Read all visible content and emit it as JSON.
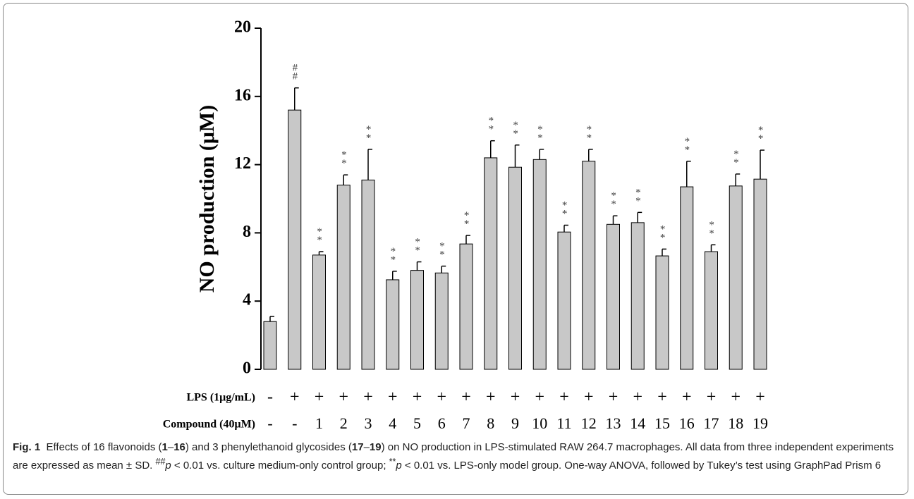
{
  "chart_data": {
    "type": "bar",
    "ylabel": "NO production (μM)",
    "ylim": [
      0,
      20
    ],
    "yticks": [
      0,
      4,
      8,
      12,
      16,
      20
    ],
    "color": "#c8c8c8",
    "row_labels": [
      "LPS (1μg/mL)",
      "Compound (40μM)"
    ],
    "lps": [
      "-",
      "+",
      "+",
      "+",
      "+",
      "+",
      "+",
      "+",
      "+",
      "+",
      "+",
      "+",
      "+",
      "+",
      "+",
      "+",
      "+",
      "+",
      "+",
      "+",
      "+"
    ],
    "categories": [
      "-",
      "-",
      "1",
      "2",
      "3",
      "4",
      "5",
      "6",
      "7",
      "8",
      "9",
      "10",
      "11",
      "12",
      "13",
      "14",
      "15",
      "16",
      "17",
      "18",
      "19"
    ],
    "values": [
      2.8,
      15.2,
      6.7,
      10.8,
      11.1,
      5.25,
      5.8,
      5.65,
      7.35,
      12.4,
      11.85,
      12.3,
      8.05,
      12.2,
      8.5,
      8.6,
      6.65,
      10.7,
      6.9,
      10.75,
      11.15
    ],
    "errors": [
      0.3,
      1.3,
      0.2,
      0.6,
      1.8,
      0.5,
      0.5,
      0.4,
      0.5,
      1.0,
      1.3,
      0.6,
      0.4,
      0.7,
      0.5,
      0.6,
      0.4,
      1.5,
      0.4,
      0.7,
      1.7
    ],
    "significance": [
      null,
      "##",
      "**",
      "**",
      "**",
      "**",
      "**",
      "**",
      "**",
      "**",
      "**",
      "**",
      "**",
      "**",
      "**",
      "**",
      "**",
      "**",
      "**",
      "**",
      "**"
    ]
  },
  "caption": {
    "label": "Fig. 1",
    "parts": [
      "Effects of 16 flavonoids (",
      "1",
      "–",
      "16",
      ") and 3 phenylethanoid glycosides (",
      "17",
      "–",
      "19",
      ") on NO production in LPS-stimulated RAW 264.7 macrophages. All data from three independent experiments are expressed as mean ± SD. ",
      "##",
      "p",
      " < 0.01 vs. culture medium-only control group; ",
      "**",
      "p",
      " < 0.01 vs. LPS-only model group. One-way ANOVA, followed by Tukey’s test using GraphPad Prism 6"
    ]
  }
}
